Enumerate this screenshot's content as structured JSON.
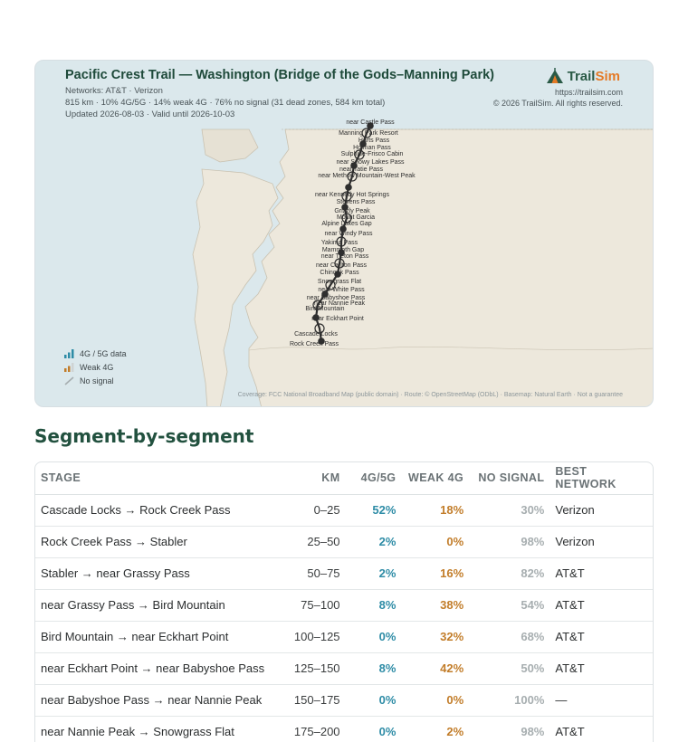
{
  "map": {
    "title": "Pacific Crest Trail — Washington (Bridge of the Gods–Manning Park)",
    "networks": "Networks: AT&T · Verizon",
    "summary": "815 km · 10% 4G/5G · 14% weak 4G · 76% no signal (31 dead zones, 584 km total)",
    "updated": "Updated 2026-08-03 · Valid until 2026-10-03",
    "brand_name_a": "Trail",
    "brand_name_b": "Sim",
    "brand_url": "https://trailsim.com",
    "brand_copyright": "© 2026 TrailSim. All rights reserved.",
    "legend": {
      "good": "4G / 5G data",
      "weak": "Weak 4G",
      "none": "No signal"
    },
    "credit": "Coverage: FCC National Broadband Map (public domain) · Route: © OpenStreetMap (ODbL) · Basemap: Natural Earth · Not a guarantee",
    "place_labels": [
      "near Castle Pass",
      "Manning Park Resort",
      "Harts Pass",
      "Holman Pass",
      "Sulphide-Frisco Cabin",
      "near Snowy Lakes Pass",
      "near Tatie Pass",
      "near Methow Mountain-West Peak",
      "near Kennedy Hot Springs",
      "Stevens Pass",
      "Grizzly Peak",
      "Mount Garcia",
      "Alpine Lakes Gap",
      "near Windy Pass",
      "Yakima Pass",
      "Mammoth Gap",
      "near Tieton Pass",
      "near Carlton Pass",
      "Chinook Pass",
      "Snowgrass Flat",
      "near White Pass",
      "near Babyshoe Pass",
      "near Nannie Peak",
      "Bird Mountain",
      "near Eckhart Point",
      "Cascade Locks",
      "Rock Creek Pass"
    ],
    "colors": {
      "water": "#dbe8ec",
      "land": "#ede8dc",
      "land_other": "#ede7d8",
      "route": "#2e2e2e",
      "accent_green": "#1e4a3a",
      "accent_orange": "#e47a26",
      "good": "#2e8ca6",
      "weak": "#c27d2a",
      "none": "#a7aeb0"
    }
  },
  "section_title": "Segment-by-segment",
  "table": {
    "headers": [
      "STAGE",
      "KM",
      "4G/5G",
      "WEAK 4G",
      "NO SIGNAL",
      "BEST NETWORK"
    ],
    "rows": [
      {
        "stage": "Cascade Locks → Rock Creek Pass",
        "km": "0–25",
        "good": "52%",
        "weak": "18%",
        "none": "30%",
        "net": "Verizon"
      },
      {
        "stage": "Rock Creek Pass → Stabler",
        "km": "25–50",
        "good": "2%",
        "weak": "0%",
        "none": "98%",
        "net": "Verizon"
      },
      {
        "stage": "Stabler → near Grassy Pass",
        "km": "50–75",
        "good": "2%",
        "weak": "16%",
        "none": "82%",
        "net": "AT&T"
      },
      {
        "stage": "near Grassy Pass → Bird Mountain",
        "km": "75–100",
        "good": "8%",
        "weak": "38%",
        "none": "54%",
        "net": "AT&T"
      },
      {
        "stage": "Bird Mountain → near Eckhart Point",
        "km": "100–125",
        "good": "0%",
        "weak": "32%",
        "none": "68%",
        "net": "AT&T"
      },
      {
        "stage": "near Eckhart Point → near Babyshoe Pass",
        "km": "125–150",
        "good": "8%",
        "weak": "42%",
        "none": "50%",
        "net": "AT&T"
      },
      {
        "stage": "near Babyshoe Pass → near Nannie Peak",
        "km": "150–175",
        "good": "0%",
        "weak": "0%",
        "none": "100%",
        "net": "—"
      },
      {
        "stage": "near Nannie Peak → Snowgrass Flat",
        "km": "175–200",
        "good": "0%",
        "weak": "2%",
        "none": "98%",
        "net": "AT&T"
      }
    ]
  }
}
